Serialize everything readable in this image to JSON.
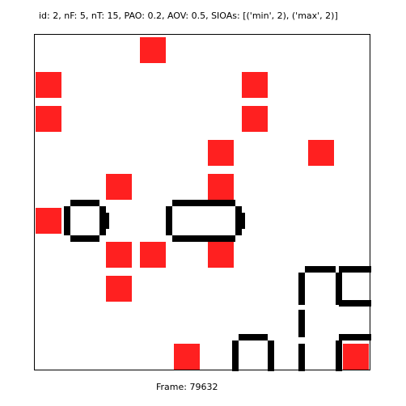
{
  "header": {
    "text": "id: 2, nF: 5, nT: 15, PAO: 0.2, AOV: 0.5, SIOAs: [('min', 2), ('max', 2)]"
  },
  "footer": {
    "text": "Frame: 79632"
  },
  "colors": {
    "target": "#ff2020",
    "wall": "#000000",
    "background": "#ffffff"
  }
}
